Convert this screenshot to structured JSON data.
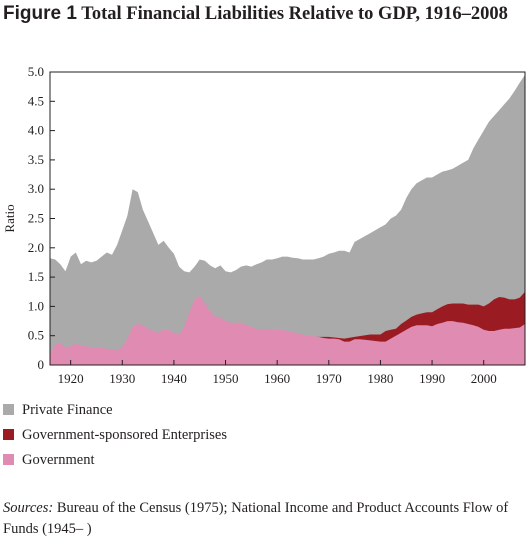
{
  "title": {
    "figure": "Figure 1",
    "text": "Total Financial Liabilities Relative to GDP, 1916–2008"
  },
  "legend": [
    {
      "label": "Private Finance",
      "color": "#aaaaaa"
    },
    {
      "label": "Government-sponsored Enterprises",
      "color": "#9b1b22"
    },
    {
      "label": "Government",
      "color": "#e08bb1"
    }
  ],
  "sources": {
    "lead": "Sources:",
    "text": " Bureau of the Census (1975); National Income and Product Accounts Flow of Funds (1945– )"
  },
  "chart_data": {
    "type": "area",
    "stacked": false,
    "title": "",
    "xlabel": "",
    "ylabel": "Ratio",
    "xlim": [
      1916,
      2008
    ],
    "ylim": [
      0,
      5.0
    ],
    "x_ticks": [
      "1920",
      "1930",
      "1940",
      "1950",
      "1960",
      "1970",
      "1980",
      "1990",
      "2000"
    ],
    "y_ticks": [
      "0",
      "0.5",
      "1.0",
      "1.5",
      "2.0",
      "2.5",
      "3.0",
      "3.5",
      "4.0",
      "4.5",
      "5.0"
    ],
    "grid": false,
    "series": [
      {
        "name": "Private Finance",
        "color": "#aaaaaa",
        "points": [
          [
            1916,
            1.82
          ],
          [
            1917,
            1.8
          ],
          [
            1918,
            1.72
          ],
          [
            1919,
            1.6
          ],
          [
            1920,
            1.85
          ],
          [
            1921,
            1.92
          ],
          [
            1922,
            1.72
          ],
          [
            1923,
            1.78
          ],
          [
            1924,
            1.75
          ],
          [
            1925,
            1.78
          ],
          [
            1926,
            1.85
          ],
          [
            1927,
            1.92
          ],
          [
            1928,
            1.88
          ],
          [
            1929,
            2.05
          ],
          [
            1930,
            2.3
          ],
          [
            1931,
            2.55
          ],
          [
            1932,
            3.0
          ],
          [
            1933,
            2.95
          ],
          [
            1934,
            2.65
          ],
          [
            1935,
            2.45
          ],
          [
            1936,
            2.25
          ],
          [
            1937,
            2.05
          ],
          [
            1938,
            2.12
          ],
          [
            1939,
            2.0
          ],
          [
            1940,
            1.9
          ],
          [
            1941,
            1.68
          ],
          [
            1942,
            1.6
          ],
          [
            1943,
            1.58
          ],
          [
            1944,
            1.68
          ],
          [
            1945,
            1.8
          ],
          [
            1946,
            1.78
          ],
          [
            1947,
            1.7
          ],
          [
            1948,
            1.65
          ],
          [
            1949,
            1.7
          ],
          [
            1950,
            1.6
          ],
          [
            1951,
            1.58
          ],
          [
            1952,
            1.62
          ],
          [
            1953,
            1.68
          ],
          [
            1954,
            1.7
          ],
          [
            1955,
            1.68
          ],
          [
            1956,
            1.72
          ],
          [
            1957,
            1.75
          ],
          [
            1958,
            1.8
          ],
          [
            1959,
            1.8
          ],
          [
            1960,
            1.82
          ],
          [
            1961,
            1.85
          ],
          [
            1962,
            1.85
          ],
          [
            1963,
            1.83
          ],
          [
            1964,
            1.82
          ],
          [
            1965,
            1.8
          ],
          [
            1966,
            1.8
          ],
          [
            1967,
            1.8
          ],
          [
            1968,
            1.82
          ],
          [
            1969,
            1.85
          ],
          [
            1970,
            1.9
          ],
          [
            1971,
            1.92
          ],
          [
            1972,
            1.95
          ],
          [
            1973,
            1.95
          ],
          [
            1974,
            1.92
          ],
          [
            1975,
            2.1
          ],
          [
            1976,
            2.15
          ],
          [
            1977,
            2.2
          ],
          [
            1978,
            2.25
          ],
          [
            1979,
            2.3
          ],
          [
            1980,
            2.35
          ],
          [
            1981,
            2.4
          ],
          [
            1982,
            2.5
          ],
          [
            1983,
            2.55
          ],
          [
            1984,
            2.65
          ],
          [
            1985,
            2.85
          ],
          [
            1986,
            3.0
          ],
          [
            1987,
            3.1
          ],
          [
            1988,
            3.15
          ],
          [
            1989,
            3.2
          ],
          [
            1990,
            3.2
          ],
          [
            1991,
            3.25
          ],
          [
            1992,
            3.3
          ],
          [
            1993,
            3.32
          ],
          [
            1994,
            3.35
          ],
          [
            1995,
            3.4
          ],
          [
            1996,
            3.45
          ],
          [
            1997,
            3.5
          ],
          [
            1998,
            3.7
          ],
          [
            1999,
            3.85
          ],
          [
            2000,
            4.0
          ],
          [
            2001,
            4.15
          ],
          [
            2002,
            4.25
          ],
          [
            2003,
            4.35
          ],
          [
            2004,
            4.45
          ],
          [
            2005,
            4.55
          ],
          [
            2006,
            4.68
          ],
          [
            2007,
            4.82
          ],
          [
            2008,
            4.95
          ]
        ]
      },
      {
        "name": "Government-sponsored Enterprises",
        "color": "#9b1b22",
        "points": [
          [
            1916,
            0.0
          ],
          [
            1930,
            0.0
          ],
          [
            1950,
            0.0
          ],
          [
            1960,
            0.0
          ],
          [
            1965,
            0.48
          ],
          [
            1970,
            0.48
          ],
          [
            1973,
            0.45
          ],
          [
            1975,
            0.48
          ],
          [
            1978,
            0.52
          ],
          [
            1980,
            0.52
          ],
          [
            1981,
            0.58
          ],
          [
            1982,
            0.6
          ],
          [
            1983,
            0.62
          ],
          [
            1984,
            0.7
          ],
          [
            1985,
            0.76
          ],
          [
            1986,
            0.82
          ],
          [
            1987,
            0.86
          ],
          [
            1988,
            0.88
          ],
          [
            1989,
            0.9
          ],
          [
            1990,
            0.9
          ],
          [
            1991,
            0.95
          ],
          [
            1992,
            1.0
          ],
          [
            1993,
            1.04
          ],
          [
            1994,
            1.05
          ],
          [
            1995,
            1.05
          ],
          [
            1996,
            1.05
          ],
          [
            1997,
            1.03
          ],
          [
            1998,
            1.03
          ],
          [
            1999,
            1.03
          ],
          [
            2000,
            1.0
          ],
          [
            2001,
            1.05
          ],
          [
            2002,
            1.12
          ],
          [
            2003,
            1.16
          ],
          [
            2004,
            1.15
          ],
          [
            2005,
            1.12
          ],
          [
            2006,
            1.12
          ],
          [
            2007,
            1.15
          ],
          [
            2008,
            1.25
          ]
        ]
      },
      {
        "name": "Government",
        "color": "#e08bb1",
        "points": [
          [
            1916,
            0.18
          ],
          [
            1917,
            0.35
          ],
          [
            1918,
            0.38
          ],
          [
            1919,
            0.3
          ],
          [
            1920,
            0.32
          ],
          [
            1921,
            0.36
          ],
          [
            1922,
            0.34
          ],
          [
            1923,
            0.32
          ],
          [
            1924,
            0.3
          ],
          [
            1925,
            0.3
          ],
          [
            1926,
            0.3
          ],
          [
            1927,
            0.28
          ],
          [
            1928,
            0.26
          ],
          [
            1929,
            0.25
          ],
          [
            1930,
            0.3
          ],
          [
            1931,
            0.45
          ],
          [
            1932,
            0.65
          ],
          [
            1933,
            0.7
          ],
          [
            1934,
            0.68
          ],
          [
            1935,
            0.62
          ],
          [
            1936,
            0.58
          ],
          [
            1937,
            0.55
          ],
          [
            1938,
            0.6
          ],
          [
            1939,
            0.6
          ],
          [
            1940,
            0.55
          ],
          [
            1941,
            0.52
          ],
          [
            1942,
            0.65
          ],
          [
            1943,
            0.9
          ],
          [
            1944,
            1.12
          ],
          [
            1945,
            1.18
          ],
          [
            1946,
            1.05
          ],
          [
            1947,
            0.92
          ],
          [
            1948,
            0.82
          ],
          [
            1949,
            0.82
          ],
          [
            1950,
            0.75
          ],
          [
            1951,
            0.72
          ],
          [
            1952,
            0.72
          ],
          [
            1953,
            0.72
          ],
          [
            1954,
            0.68
          ],
          [
            1955,
            0.65
          ],
          [
            1956,
            0.62
          ],
          [
            1957,
            0.6
          ],
          [
            1958,
            0.62
          ],
          [
            1959,
            0.6
          ],
          [
            1960,
            0.6
          ],
          [
            1961,
            0.6
          ],
          [
            1962,
            0.58
          ],
          [
            1963,
            0.56
          ],
          [
            1964,
            0.54
          ],
          [
            1965,
            0.52
          ],
          [
            1966,
            0.5
          ],
          [
            1967,
            0.49
          ],
          [
            1968,
            0.48
          ],
          [
            1969,
            0.46
          ],
          [
            1970,
            0.45
          ],
          [
            1971,
            0.45
          ],
          [
            1972,
            0.44
          ],
          [
            1973,
            0.4
          ],
          [
            1974,
            0.4
          ],
          [
            1975,
            0.44
          ],
          [
            1976,
            0.44
          ],
          [
            1977,
            0.43
          ],
          [
            1978,
            0.42
          ],
          [
            1979,
            0.41
          ],
          [
            1980,
            0.4
          ],
          [
            1981,
            0.4
          ],
          [
            1982,
            0.45
          ],
          [
            1983,
            0.5
          ],
          [
            1984,
            0.55
          ],
          [
            1985,
            0.6
          ],
          [
            1986,
            0.65
          ],
          [
            1987,
            0.68
          ],
          [
            1988,
            0.68
          ],
          [
            1989,
            0.68
          ],
          [
            1990,
            0.66
          ],
          [
            1991,
            0.7
          ],
          [
            1992,
            0.72
          ],
          [
            1993,
            0.75
          ],
          [
            1994,
            0.75
          ],
          [
            1995,
            0.73
          ],
          [
            1996,
            0.72
          ],
          [
            1997,
            0.7
          ],
          [
            1998,
            0.68
          ],
          [
            1999,
            0.65
          ],
          [
            2000,
            0.6
          ],
          [
            2001,
            0.58
          ],
          [
            2002,
            0.58
          ],
          [
            2003,
            0.6
          ],
          [
            2004,
            0.62
          ],
          [
            2005,
            0.62
          ],
          [
            2006,
            0.63
          ],
          [
            2007,
            0.64
          ],
          [
            2008,
            0.7
          ]
        ]
      }
    ]
  }
}
